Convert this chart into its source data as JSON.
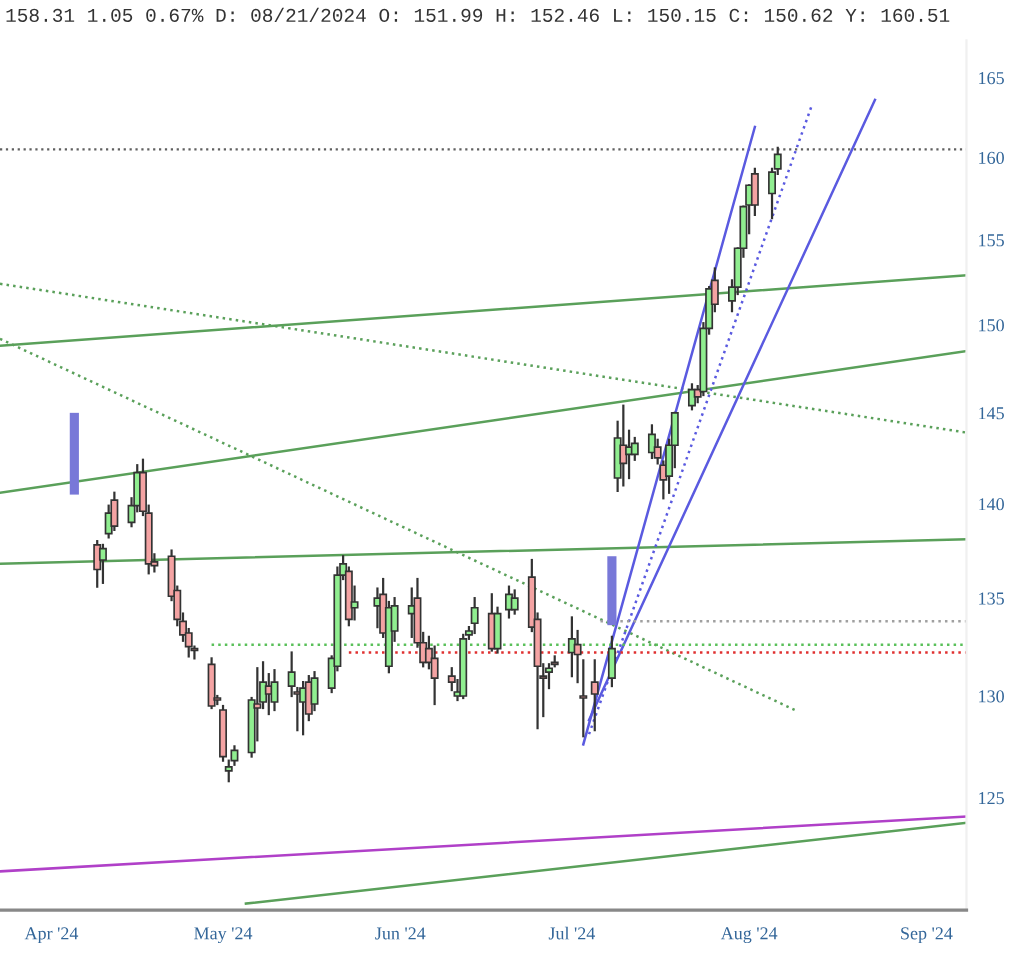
{
  "chart_data": {
    "type": "candlestick",
    "title": "158.31 1.05 0.67% D: 08/21/2024 O: 151.99 H: 152.46 L: 150.15 C: 150.62 Y: 160.51",
    "x": [
      "2024-04-09",
      "2024-04-10",
      "2024-04-11",
      "2024-04-12",
      "2024-04-15",
      "2024-04-16",
      "2024-04-17",
      "2024-04-18",
      "2024-04-19",
      "2024-04-22",
      "2024-04-23",
      "2024-04-24",
      "2024-04-25",
      "2024-04-26",
      "2024-04-29",
      "2024-04-30",
      "2024-05-01",
      "2024-05-02",
      "2024-05-03",
      "2024-05-06",
      "2024-05-07",
      "2024-05-08",
      "2024-05-09",
      "2024-05-10",
      "2024-05-13",
      "2024-05-14",
      "2024-05-15",
      "2024-05-16",
      "2024-05-17",
      "2024-05-20",
      "2024-05-21",
      "2024-05-22",
      "2024-05-23",
      "2024-05-24",
      "2024-05-28",
      "2024-05-29",
      "2024-05-30",
      "2024-05-31",
      "2024-06-03",
      "2024-06-04",
      "2024-06-05",
      "2024-06-06",
      "2024-06-07",
      "2024-06-10",
      "2024-06-11",
      "2024-06-12",
      "2024-06-13",
      "2024-06-14",
      "2024-06-17",
      "2024-06-18",
      "2024-06-20",
      "2024-06-21",
      "2024-06-24",
      "2024-06-25",
      "2024-06-26",
      "2024-06-27",
      "2024-06-28",
      "2024-07-01",
      "2024-07-02",
      "2024-07-03",
      "2024-07-05",
      "2024-07-08",
      "2024-07-09",
      "2024-07-10",
      "2024-07-11",
      "2024-07-12",
      "2024-07-15",
      "2024-07-16",
      "2024-07-17",
      "2024-07-18",
      "2024-07-19",
      "2024-07-22",
      "2024-07-23",
      "2024-07-24",
      "2024-07-25",
      "2024-07-26",
      "2024-07-29",
      "2024-07-30",
      "2024-07-31",
      "2024-08-01",
      "2024-08-02",
      "2024-08-05",
      "2024-08-06"
    ],
    "ohlc": [
      [
        137.8,
        138.0,
        135.6,
        136.5
      ],
      [
        137.0,
        137.8,
        135.8,
        137.6
      ],
      [
        138.4,
        139.9,
        138.2,
        139.5
      ],
      [
        140.2,
        140.6,
        138.6,
        138.8
      ],
      [
        139.0,
        140.3,
        138.8,
        139.9
      ],
      [
        139.9,
        142.1,
        139.6,
        141.7
      ],
      [
        141.7,
        142.4,
        139.4,
        139.6
      ],
      [
        139.5,
        139.9,
        136.3,
        136.8
      ],
      [
        136.9,
        137.3,
        136.4,
        136.7
      ],
      [
        137.2,
        137.5,
        134.9,
        135.1
      ],
      [
        135.4,
        135.6,
        133.6,
        133.9
      ],
      [
        133.8,
        134.2,
        132.8,
        133.1
      ],
      [
        133.2,
        133.4,
        132.0,
        132.5
      ],
      [
        132.4,
        132.5,
        131.9,
        132.3
      ],
      [
        131.6,
        131.9,
        129.4,
        129.5
      ],
      [
        129.9,
        130.0,
        129.6,
        129.8
      ],
      [
        129.3,
        129.5,
        126.8,
        127.0
      ],
      [
        126.3,
        126.8,
        125.8,
        126.5
      ],
      [
        126.8,
        127.5,
        126.6,
        127.3
      ],
      [
        127.2,
        129.9,
        127.0,
        129.8
      ],
      [
        129.6,
        131.4,
        127.8,
        129.4
      ],
      [
        129.7,
        131.7,
        129.4,
        130.7
      ],
      [
        130.5,
        131.1,
        129.1,
        130.1
      ],
      [
        129.7,
        131.3,
        129.3,
        130.7
      ],
      [
        130.5,
        132.2,
        130.0,
        131.2
      ],
      [
        130.2,
        130.4,
        128.3,
        130.1
      ],
      [
        129.7,
        130.7,
        128.1,
        130.4
      ],
      [
        130.7,
        131.0,
        128.8,
        129.1
      ],
      [
        129.6,
        131.2,
        129.3,
        130.9
      ],
      [
        130.4,
        132.0,
        130.2,
        131.9
      ],
      [
        131.5,
        136.6,
        131.3,
        136.2
      ],
      [
        136.2,
        137.2,
        136.0,
        136.8
      ],
      [
        136.4,
        136.6,
        133.6,
        133.9
      ],
      [
        134.5,
        135.6,
        133.9,
        134.8
      ],
      [
        134.6,
        135.5,
        133.5,
        135.0
      ],
      [
        135.2,
        136.0,
        133.0,
        133.2
      ],
      [
        131.5,
        134.8,
        131.2,
        134.5
      ],
      [
        133.3,
        135.0,
        132.8,
        134.6
      ],
      [
        134.2,
        135.5,
        133.0,
        134.6
      ],
      [
        135.0,
        136.0,
        132.5,
        132.7
      ],
      [
        132.7,
        133.2,
        131.5,
        131.7
      ],
      [
        132.4,
        133.0,
        131.4,
        131.7
      ],
      [
        131.9,
        132.5,
        129.6,
        130.9
      ],
      [
        131.0,
        131.4,
        130.3,
        130.7
      ],
      [
        130.0,
        130.8,
        129.8,
        130.2
      ],
      [
        130.0,
        133.1,
        129.9,
        132.9
      ],
      [
        133.1,
        133.5,
        132.9,
        133.3
      ],
      [
        133.7,
        135.0,
        133.2,
        134.5
      ],
      [
        134.2,
        135.2,
        132.3,
        132.4
      ],
      [
        132.4,
        134.5,
        132.2,
        134.2
      ],
      [
        134.4,
        135.6,
        134.0,
        135.2
      ],
      [
        134.4,
        135.4,
        134.2,
        135.0
      ],
      [
        136.1,
        137.0,
        133.3,
        133.5
      ],
      [
        133.9,
        134.2,
        128.4,
        131.5
      ],
      [
        131.0,
        131.6,
        129.0,
        130.9
      ],
      [
        131.2,
        131.6,
        130.4,
        131.4
      ],
      [
        131.7,
        132.0,
        131.5,
        131.6
      ],
      [
        132.2,
        134.0,
        131.0,
        132.9
      ],
      [
        132.6,
        133.3,
        130.7,
        132.1
      ],
      [
        130.0,
        131.8,
        128.0,
        129.9
      ],
      [
        130.7,
        131.8,
        128.3,
        130.1
      ],
      [
        130.9,
        133.0,
        130.5,
        132.4
      ],
      [
        141.4,
        144.5,
        140.7,
        143.6
      ],
      [
        143.2,
        145.4,
        141.0,
        142.2
      ],
      [
        142.7,
        144.0,
        141.4,
        143.1
      ],
      [
        142.7,
        143.6,
        142.4,
        143.3
      ],
      [
        142.8,
        144.3,
        142.5,
        143.8
      ],
      [
        143.1,
        143.5,
        142.2,
        142.5
      ],
      [
        142.1,
        142.3,
        140.3,
        141.3
      ],
      [
        141.5,
        143.5,
        140.6,
        143.2
      ],
      [
        143.2,
        145.0,
        142.0,
        145.0
      ],
      [
        145.4,
        146.6,
        145.2,
        146.3
      ],
      [
        146.3,
        146.5,
        145.6,
        145.9
      ],
      [
        146.2,
        150.1,
        146.0,
        149.8
      ],
      [
        149.8,
        152.2,
        149.5,
        152.1
      ],
      [
        152.6,
        153.3,
        150.8,
        151.2
      ],
      [
        151.4,
        152.6,
        150.8,
        152.2
      ],
      [
        152.2,
        154.5,
        151.8,
        154.5
      ],
      [
        154.5,
        157.0,
        154.0,
        157.0
      ],
      [
        157.1,
        158.3,
        155.4,
        158.3
      ],
      [
        159.0,
        159.3,
        156.5,
        157.1
      ],
      [
        157.8,
        159.3,
        156.3,
        159.1
      ],
      [
        159.3,
        160.6,
        159.0,
        160.2
      ]
    ],
    "colors": [
      "#f4a3a3",
      "#90ee90",
      "#90ee90",
      "#f4a3a3",
      "#90ee90",
      "#90ee90",
      "#f4a3a3",
      "#f4a3a3",
      "#f4a3a3",
      "#f4a3a3",
      "#f4a3a3",
      "#f4a3a3",
      "#f4a3a3",
      "#f4a3a3",
      "#f4a3a3",
      "#f4a3a3",
      "#f4a3a3",
      "#90ee90",
      "#90ee90",
      "#90ee90",
      "#f4a3a3",
      "#90ee90",
      "#f4a3a3",
      "#90ee90",
      "#90ee90",
      "#f4a3a3",
      "#90ee90",
      "#f4a3a3",
      "#90ee90",
      "#90ee90",
      "#90ee90",
      "#90ee90",
      "#f4a3a3",
      "#90ee90",
      "#90ee90",
      "#f4a3a3",
      "#90ee90",
      "#90ee90",
      "#90ee90",
      "#f4a3a3",
      "#f4a3a3",
      "#f4a3a3",
      "#f4a3a3",
      "#f4a3a3",
      "#90ee90",
      "#90ee90",
      "#90ee90",
      "#90ee90",
      "#f4a3a3",
      "#90ee90",
      "#90ee90",
      "#90ee90",
      "#f4a3a3",
      "#f4a3a3",
      "#f4a3a3",
      "#90ee90",
      "#f4a3a3",
      "#90ee90",
      "#f4a3a3",
      "#f4a3a3",
      "#f4a3a3",
      "#90ee90",
      "#90ee90",
      "#f4a3a3",
      "#90ee90",
      "#90ee90",
      "#90ee90",
      "#f4a3a3",
      "#f4a3a3",
      "#90ee90",
      "#90ee90",
      "#90ee90",
      "#f4a3a3",
      "#90ee90",
      "#90ee90",
      "#f4a3a3",
      "#90ee90",
      "#90ee90",
      "#90ee90",
      "#90ee90",
      "#f4a3a3",
      "#90ee90",
      "#90ee90"
    ],
    "series": [
      {
        "type": "line",
        "color": "#5aa05a",
        "line_style": "solid",
        "x": [
          "2024-03-23",
          "2024-09-08"
        ],
        "values": [
          140.6,
          148.5
        ]
      },
      {
        "type": "line",
        "color": "#5aa05a",
        "line_style": "solid",
        "x": [
          "2024-03-23",
          "2024-09-08"
        ],
        "values": [
          148.8,
          152.9
        ]
      },
      {
        "type": "line",
        "color": "#5aa05a",
        "line_style": "solid",
        "x": [
          "2024-03-23",
          "2024-09-08"
        ],
        "values": [
          136.8,
          138.1
        ]
      },
      {
        "type": "line",
        "color": "#5aa05a",
        "line_style": "dotted",
        "x": [
          "2024-03-23",
          "2024-09-08"
        ],
        "values": [
          152.4,
          143.9
        ]
      },
      {
        "type": "line",
        "color": "#5aa05a",
        "line_style": "dotted",
        "x": [
          "2024-03-23",
          "2024-08-09"
        ],
        "values": [
          149.2,
          129.3
        ]
      },
      {
        "type": "line",
        "color": "#5a5ae0",
        "line_style": "solid",
        "x": [
          "2024-07-03",
          "2024-08-02"
        ],
        "values": [
          127.6,
          161.9
        ]
      },
      {
        "type": "line",
        "color": "#5a5ae0",
        "line_style": "solid",
        "x": [
          "2024-07-04",
          "2024-08-23"
        ],
        "values": [
          128.8,
          163.6
        ]
      },
      {
        "type": "line",
        "color": "#5a5ae0",
        "line_style": "dotted",
        "x": [
          "2024-07-04",
          "2024-08-12"
        ],
        "values": [
          128.1,
          163.3
        ]
      },
      {
        "type": "line",
        "color": "#b040c8",
        "line_style": "solid",
        "x": [
          "2024-03-23",
          "2024-09-08"
        ],
        "values": [
          121.5,
          124.1
        ]
      },
      {
        "type": "line",
        "color": "#5aa05a",
        "line_style": "solid",
        "x": [
          "2024-05-05",
          "2024-09-08"
        ],
        "values": [
          120.0,
          123.8
        ]
      },
      {
        "type": "line",
        "color": "#e03030",
        "line_style": "dotted",
        "x": [
          "2024-05-23",
          "2024-09-08"
        ],
        "values": [
          132.2,
          132.2
        ]
      },
      {
        "type": "line",
        "color": "#5ac05a",
        "line_style": "dotted",
        "x": [
          "2024-04-29",
          "2024-09-08"
        ],
        "values": [
          132.6,
          132.6
        ]
      },
      {
        "type": "line",
        "color": "#a0a0a0",
        "line_style": "dotted",
        "x": [
          "2024-07-06",
          "2024-09-08"
        ],
        "values": [
          133.8,
          133.8
        ]
      },
      {
        "type": "bar",
        "color": "#7878d8",
        "x": [
          "2024-04-05",
          "2024-07-08"
        ],
        "base": [
          140.5,
          133.6
        ],
        "values": [
          4.5,
          3.6
        ]
      }
    ],
    "ref_lines": [
      {
        "axis": "y",
        "value": 160.51,
        "color": "#606060",
        "line_style": "dotted"
      }
    ],
    "log": true,
    "ylim": [
      119.7,
      167.4
    ],
    "yticks": [
      125,
      130,
      135,
      140,
      145,
      150,
      155,
      160,
      165
    ],
    "xlim": [
      "2024-03-23",
      "2024-09-08"
    ],
    "xticks": [
      {
        "value": "2024-04-01",
        "label": "Apr '24"
      },
      {
        "value": "2024-05-01",
        "label": "May '24"
      },
      {
        "value": "2024-06-01",
        "label": "Jun '24"
      },
      {
        "value": "2024-07-01",
        "label": "Jul '24"
      },
      {
        "value": "2024-08-01",
        "label": "Aug '24"
      },
      {
        "value": "2024-09-01",
        "label": "Sep '24"
      }
    ],
    "grid": false
  }
}
